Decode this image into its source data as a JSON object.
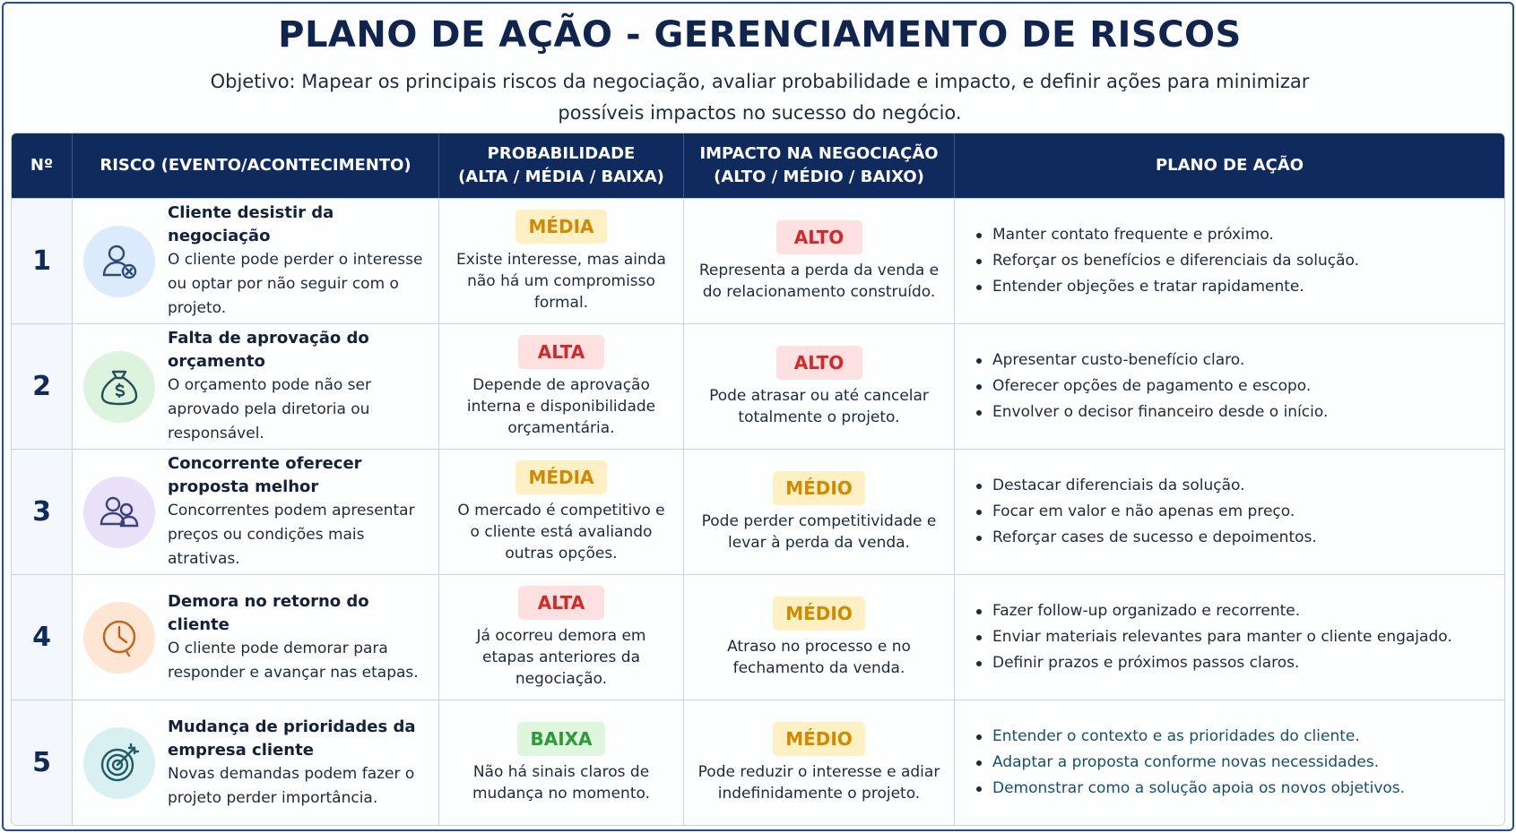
{
  "title": "PLANO DE AÇÃO - GERENCIAMENTO DE RISCOS",
  "subtitle": "Objetivo: Mapear os principais riscos da negociação, avaliar probabilidade e impacto, e definir ações para minimizar possíveis impactos no sucesso do negócio.",
  "columns": {
    "num": "Nº",
    "risk": "RISCO (EVENTO/ACONTECIMENTO)",
    "prob_line1": "PROBABILIDADE",
    "prob_line2": "(ALTA / MÉDIA / BAIXA)",
    "impact_line1": "IMPACTO NA NEGOCIAÇÃO",
    "impact_line2": "(ALTO / MÉDIO / BAIXO)",
    "plan": "PLANO DE AÇÃO"
  },
  "colors": {
    "header": "#0f2a5c",
    "media": "#d18a00",
    "alta": "#d62828",
    "baixa": "#2e9a38"
  },
  "rows": [
    {
      "num": "1",
      "icon": "user-cancel-icon",
      "title": "Cliente desistir da negociação",
      "description": "O cliente pode perder o interesse ou optar por não seguir com o projeto.",
      "probability": "MÉDIA",
      "probability_text": "Existe interesse, mas ainda não há um compromisso formal.",
      "impact": "ALTO",
      "impact_text": "Representa a perda da venda e do relacionamento construído.",
      "actions": [
        "Manter contato frequente e próximo.",
        "Reforçar os benefícios e diferenciais da solução.",
        "Entender objeções e tratar rapidamente."
      ]
    },
    {
      "num": "2",
      "icon": "money-bag-icon",
      "title": "Falta de aprovação do orçamento",
      "description": "O orçamento pode não ser aprovado pela diretoria ou responsável.",
      "probability": "ALTA",
      "probability_text": "Depende de aprovação interna e disponibilidade orçamentária.",
      "impact": "ALTO",
      "impact_text": "Pode atrasar ou até cancelar totalmente o projeto.",
      "actions": [
        "Apresentar custo-benefício claro.",
        "Oferecer opções de pagamento e escopo.",
        "Envolver o decisor financeiro desde o início."
      ]
    },
    {
      "num": "3",
      "icon": "users-icon",
      "title": "Concorrente oferecer proposta melhor",
      "description": "Concorrentes podem apresentar preços ou condições mais atrativas.",
      "probability": "MÉDIA",
      "probability_text": "O mercado é competitivo e o cliente está avaliando outras opções.",
      "impact": "MÉDIO",
      "impact_text": "Pode perder competitividade e levar à perda da venda.",
      "actions": [
        "Destacar diferenciais da solução.",
        "Focar em valor e não apenas em preço.",
        "Reforçar cases de sucesso e depoimentos."
      ]
    },
    {
      "num": "4",
      "icon": "clock-icon",
      "title": "Demora no retorno do cliente",
      "description": "O cliente pode demorar para responder e avançar nas etapas.",
      "probability": "ALTA",
      "probability_text": "Já ocorreu demora em etapas anteriores da negociação.",
      "impact": "MÉDIO",
      "impact_text": "Atraso no processo e no fechamento da venda.",
      "actions": [
        "Fazer follow-up organizado e recorrente.",
        "Enviar materiais relevantes para manter o cliente engajado.",
        "Definir prazos e próximos passos claros."
      ]
    },
    {
      "num": "5",
      "icon": "target-icon",
      "title": "Mudança de prioridades da empresa cliente",
      "description": "Novas demandas podem fazer o projeto perder importância.",
      "probability": "BAIXA",
      "probability_text": "Não há sinais claros de mudança no momento.",
      "impact": "MÉDIO",
      "impact_text": "Pode reduzir o interesse e adiar indefinidamente o projeto.",
      "actions": [
        "Entender o contexto e as prioridades do cliente.",
        "Adaptar a proposta conforme novas necessidades.",
        "Demonstrar como a solução apoia os novos objetivos."
      ]
    }
  ]
}
